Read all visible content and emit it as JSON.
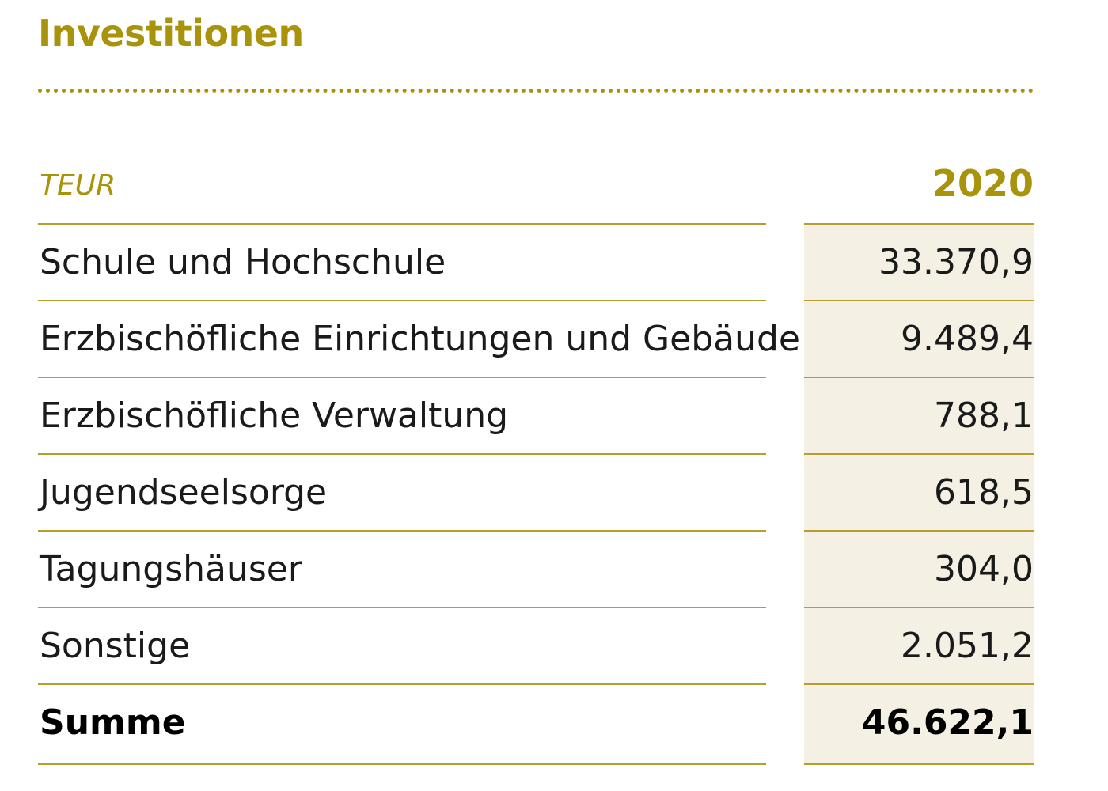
{
  "title": "Investitionen",
  "table": {
    "unit_label": "TEUR",
    "year_label": "2020",
    "rows": [
      {
        "label": "Schule und Hochschule",
        "value": "33.370,9"
      },
      {
        "label": "Erzbischöfliche Einrichtungen und Gebäude",
        "value": "9.489,4"
      },
      {
        "label": "Erzbischöfliche Verwaltung",
        "value": "788,1"
      },
      {
        "label": "Jugendseelsorge",
        "value": "618,5"
      },
      {
        "label": "Tagungshäuser",
        "value": "304,0"
      },
      {
        "label": "Sonstige",
        "value": "2.051,2"
      }
    ],
    "total": {
      "label": "Summe",
      "value": "46.622,1"
    }
  },
  "colors": {
    "accent": "#a8930a",
    "rule": "#b59f2a",
    "value_band": "#f4f0e4",
    "text": "#1a1a1a"
  }
}
